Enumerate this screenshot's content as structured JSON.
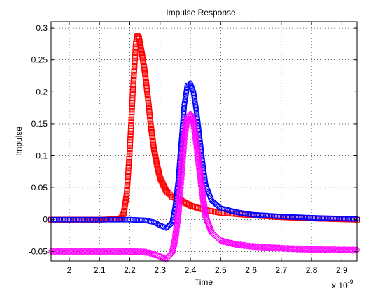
{
  "chart_data": {
    "type": "scatter",
    "title": "Impulse Response",
    "xlabel": "Time",
    "ylabel": "Impulse",
    "x_exponent": "x 10",
    "x_exponent_power": "-9",
    "xlim": [
      1.94,
      2.95
    ],
    "ylim": [
      -0.065,
      0.31
    ],
    "x_ticks": [
      2,
      2.1,
      2.2,
      2.3,
      2.4,
      2.5,
      2.6,
      2.7,
      2.8,
      2.9
    ],
    "x_tick_labels": [
      "2",
      "2.1",
      "2.2",
      "2.3",
      "2.4",
      "2.5",
      "2.6",
      "2.7",
      "2.8",
      "2.9"
    ],
    "y_ticks": [
      -0.05,
      0,
      0.05,
      0.1,
      0.15,
      0.2,
      0.25,
      0.3
    ],
    "y_tick_labels": [
      "-0.05",
      "0",
      "0.05",
      "0.1",
      "0.15",
      "0.2",
      "0.25",
      "0.3"
    ],
    "grid": true,
    "series": [
      {
        "color": "#ff0000",
        "marker": "square",
        "points": [
          [
            1.94,
            0.0
          ],
          [
            2.1,
            0.0
          ],
          [
            2.17,
            0.001
          ],
          [
            2.18,
            0.01
          ],
          [
            2.19,
            0.04
          ],
          [
            2.2,
            0.11
          ],
          [
            2.21,
            0.2
          ],
          [
            2.22,
            0.275
          ],
          [
            2.225,
            0.288
          ],
          [
            2.23,
            0.285
          ],
          [
            2.24,
            0.26
          ],
          [
            2.25,
            0.23
          ],
          [
            2.26,
            0.19
          ],
          [
            2.27,
            0.145
          ],
          [
            2.28,
            0.11
          ],
          [
            2.29,
            0.085
          ],
          [
            2.3,
            0.065
          ],
          [
            2.32,
            0.045
          ],
          [
            2.34,
            0.036
          ],
          [
            2.37,
            0.03
          ],
          [
            2.4,
            0.022
          ],
          [
            2.45,
            0.015
          ],
          [
            2.5,
            0.011
          ],
          [
            2.6,
            0.007
          ],
          [
            2.7,
            0.004
          ],
          [
            2.8,
            0.002
          ],
          [
            2.95,
            0.0
          ]
        ]
      },
      {
        "color": "#0000ff",
        "marker": "circle",
        "points": [
          [
            1.94,
            0.0
          ],
          [
            2.2,
            0.0
          ],
          [
            2.25,
            -0.001
          ],
          [
            2.28,
            -0.004
          ],
          [
            2.3,
            -0.009
          ],
          [
            2.32,
            -0.013
          ],
          [
            2.34,
            -0.005
          ],
          [
            2.35,
            0.02
          ],
          [
            2.36,
            0.06
          ],
          [
            2.37,
            0.12
          ],
          [
            2.38,
            0.18
          ],
          [
            2.39,
            0.21
          ],
          [
            2.4,
            0.213
          ],
          [
            2.41,
            0.2
          ],
          [
            2.42,
            0.17
          ],
          [
            2.43,
            0.13
          ],
          [
            2.44,
            0.09
          ],
          [
            2.45,
            0.055
          ],
          [
            2.47,
            0.03
          ],
          [
            2.5,
            0.018
          ],
          [
            2.55,
            0.012
          ],
          [
            2.6,
            0.008
          ],
          [
            2.7,
            0.005
          ],
          [
            2.8,
            0.003
          ],
          [
            2.95,
            0.001
          ]
        ]
      },
      {
        "color": "#ff00ff",
        "marker": "diamond",
        "points": [
          [
            1.94,
            -0.05
          ],
          [
            2.2,
            -0.05
          ],
          [
            2.25,
            -0.051
          ],
          [
            2.28,
            -0.054
          ],
          [
            2.3,
            -0.058
          ],
          [
            2.32,
            -0.062
          ],
          [
            2.34,
            -0.052
          ],
          [
            2.35,
            -0.03
          ],
          [
            2.36,
            0.01
          ],
          [
            2.37,
            0.07
          ],
          [
            2.38,
            0.13
          ],
          [
            2.39,
            0.16
          ],
          [
            2.4,
            0.165
          ],
          [
            2.41,
            0.155
          ],
          [
            2.42,
            0.12
          ],
          [
            2.43,
            0.08
          ],
          [
            2.44,
            0.04
          ],
          [
            2.45,
            0.005
          ],
          [
            2.47,
            -0.02
          ],
          [
            2.5,
            -0.033
          ],
          [
            2.55,
            -0.039
          ],
          [
            2.6,
            -0.042
          ],
          [
            2.7,
            -0.045
          ],
          [
            2.8,
            -0.047
          ],
          [
            2.95,
            -0.048
          ]
        ]
      }
    ]
  }
}
